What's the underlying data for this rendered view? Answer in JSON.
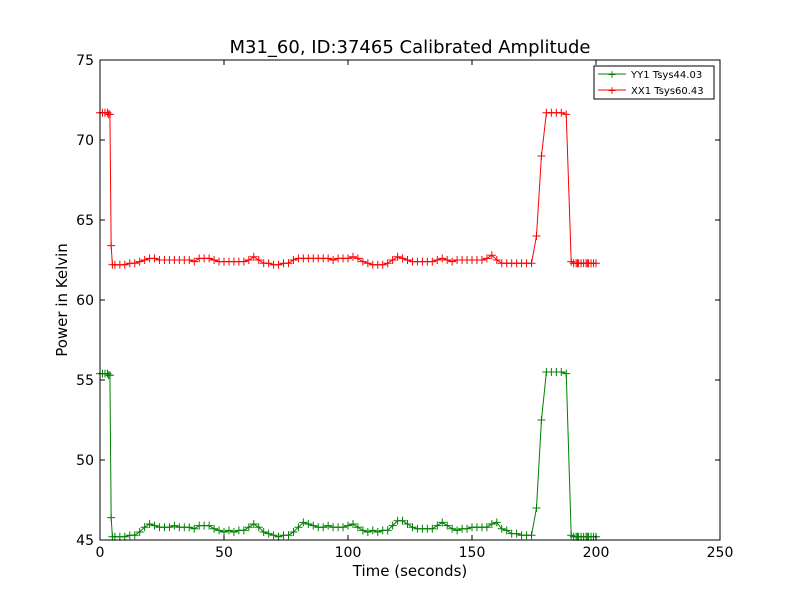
{
  "chart_data": {
    "type": "line",
    "title": "M31_60, ID:37465 Calibrated Amplitude",
    "xlabel": "Time (seconds)",
    "ylabel": "Power in Kelvin",
    "xlim": [
      0,
      250
    ],
    "ylim": [
      45,
      75
    ],
    "xticks": [
      0,
      50,
      100,
      150,
      200,
      250
    ],
    "yticks": [
      45,
      50,
      55,
      60,
      65,
      70,
      75
    ],
    "xtick_labels": [
      "0",
      "50",
      "100",
      "150",
      "200",
      "250"
    ],
    "ytick_labels": [
      "45",
      "50",
      "55",
      "60",
      "65",
      "70",
      "75"
    ],
    "grid": false,
    "legend": "top-right",
    "marker": "+",
    "series": [
      {
        "name": "YY1 Tsys44.03",
        "color": "#008000",
        "x": [
          0,
          1,
          2,
          3,
          3.5,
          4,
          4.5,
          5,
          6,
          8,
          10,
          12,
          14,
          16,
          18,
          20,
          22,
          24,
          26,
          28,
          30,
          32,
          34,
          36,
          38,
          40,
          42,
          44,
          46,
          48,
          50,
          52,
          54,
          56,
          58,
          60,
          62,
          64,
          66,
          68,
          70,
          72,
          74,
          76,
          78,
          80,
          82,
          84,
          86,
          88,
          90,
          92,
          94,
          96,
          98,
          100,
          102,
          104,
          106,
          108,
          110,
          112,
          114,
          116,
          118,
          120,
          122,
          124,
          126,
          128,
          130,
          132,
          134,
          136,
          138,
          140,
          142,
          144,
          146,
          148,
          150,
          152,
          154,
          156,
          158,
          160,
          162,
          164,
          166,
          168,
          170,
          172,
          174,
          176,
          178,
          180,
          182,
          184,
          186,
          188,
          190,
          191,
          192,
          192.5,
          193,
          194,
          195,
          196,
          196.5,
          197,
          198,
          199,
          200
        ],
        "y": [
          55.4,
          55.4,
          55.4,
          55.4,
          55.3,
          55.3,
          46.4,
          45.2,
          45.2,
          45.2,
          45.2,
          45.3,
          45.3,
          45.5,
          45.8,
          46.0,
          45.9,
          45.8,
          45.8,
          45.8,
          45.9,
          45.8,
          45.8,
          45.8,
          45.7,
          45.9,
          45.9,
          45.9,
          45.7,
          45.6,
          45.5,
          45.6,
          45.5,
          45.6,
          45.6,
          45.8,
          46.0,
          45.8,
          45.5,
          45.4,
          45.3,
          45.2,
          45.3,
          45.3,
          45.5,
          45.8,
          46.1,
          46.0,
          45.9,
          45.8,
          45.8,
          45.9,
          45.8,
          45.8,
          45.8,
          45.9,
          46.0,
          45.8,
          45.6,
          45.5,
          45.6,
          45.5,
          45.6,
          45.6,
          45.9,
          46.2,
          46.2,
          46.0,
          45.8,
          45.7,
          45.7,
          45.7,
          45.7,
          45.9,
          46.1,
          45.9,
          45.7,
          45.6,
          45.7,
          45.7,
          45.8,
          45.8,
          45.8,
          45.8,
          46.0,
          46.1,
          45.7,
          45.6,
          45.4,
          45.4,
          45.3,
          45.3,
          45.3,
          47.0,
          52.5,
          55.5,
          55.5,
          55.5,
          55.5,
          55.4,
          45.3,
          45.2,
          45.2,
          45.2,
          45.2,
          45.2,
          45.2,
          45.2,
          45.2,
          45.2,
          45.2,
          45.2,
          45.2
        ],
        "x_note": ""
      },
      {
        "name": "XX1 Tsys60.43",
        "color": "#ff0000",
        "x": [
          0,
          1,
          2,
          3,
          3.5,
          4,
          4.5,
          5,
          6,
          8,
          10,
          12,
          14,
          16,
          18,
          20,
          22,
          24,
          26,
          28,
          30,
          32,
          34,
          36,
          38,
          40,
          42,
          44,
          46,
          48,
          50,
          52,
          54,
          56,
          58,
          60,
          62,
          64,
          66,
          68,
          70,
          72,
          74,
          76,
          78,
          80,
          82,
          84,
          86,
          88,
          90,
          92,
          94,
          96,
          98,
          100,
          102,
          104,
          106,
          108,
          110,
          112,
          114,
          116,
          118,
          120,
          122,
          124,
          126,
          128,
          130,
          132,
          134,
          136,
          138,
          140,
          142,
          144,
          146,
          148,
          150,
          152,
          154,
          156,
          158,
          160,
          162,
          164,
          166,
          168,
          170,
          172,
          174,
          176,
          178,
          180,
          182,
          184,
          186,
          188,
          190,
          191,
          192,
          192.5,
          193,
          194,
          195,
          196,
          196.5,
          197,
          198,
          199,
          200
        ],
        "y": [
          71.7,
          71.7,
          71.7,
          71.7,
          71.6,
          71.6,
          63.4,
          62.2,
          62.2,
          62.2,
          62.2,
          62.3,
          62.3,
          62.4,
          62.5,
          62.6,
          62.6,
          62.5,
          62.5,
          62.5,
          62.5,
          62.5,
          62.5,
          62.5,
          62.4,
          62.6,
          62.6,
          62.6,
          62.5,
          62.4,
          62.4,
          62.4,
          62.4,
          62.4,
          62.4,
          62.5,
          62.7,
          62.5,
          62.3,
          62.3,
          62.2,
          62.2,
          62.3,
          62.3,
          62.5,
          62.6,
          62.6,
          62.6,
          62.6,
          62.6,
          62.6,
          62.6,
          62.5,
          62.6,
          62.6,
          62.6,
          62.7,
          62.6,
          62.4,
          62.3,
          62.2,
          62.2,
          62.2,
          62.3,
          62.5,
          62.7,
          62.6,
          62.5,
          62.4,
          62.4,
          62.4,
          62.4,
          62.4,
          62.5,
          62.6,
          62.5,
          62.4,
          62.5,
          62.5,
          62.5,
          62.5,
          62.5,
          62.5,
          62.6,
          62.8,
          62.5,
          62.3,
          62.3,
          62.3,
          62.3,
          62.3,
          62.3,
          62.3,
          64.0,
          69.0,
          71.7,
          71.7,
          71.7,
          71.7,
          71.6,
          62.4,
          62.3,
          62.3,
          62.3,
          62.3,
          62.3,
          62.3,
          62.3,
          62.3,
          62.3,
          62.3,
          62.3,
          62.3
        ]
      }
    ]
  }
}
